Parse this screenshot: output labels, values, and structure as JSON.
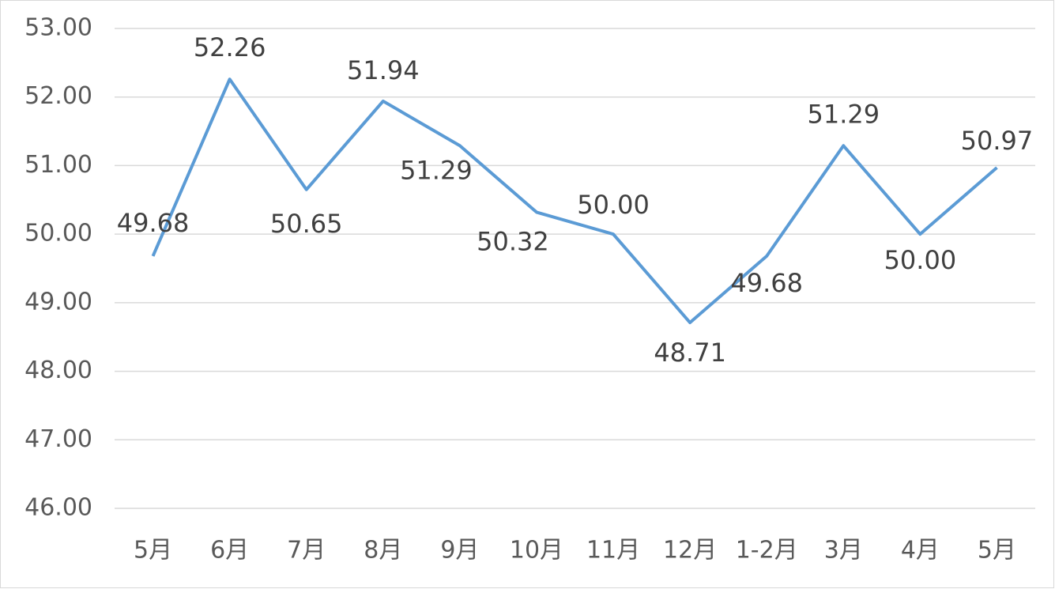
{
  "chart_data": {
    "type": "line",
    "categories": [
      "5月",
      "6月",
      "7月",
      "8月",
      "9月",
      "10月",
      "11月",
      "12月",
      "1-2月",
      "3月",
      "4月",
      "5月"
    ],
    "series": [
      {
        "color": "#5b9bd5",
        "values": [
          49.68,
          52.26,
          50.65,
          51.94,
          51.29,
          50.32,
          50.0,
          48.71,
          49.68,
          51.29,
          50.0,
          50.97
        ],
        "value_labels": [
          "49.68",
          "52.26",
          "50.65",
          "51.94",
          "51.29",
          "50.32",
          "50.00",
          "48.71",
          "49.68",
          "51.29",
          "50.00",
          "50.97"
        ]
      }
    ],
    "ylim": [
      46,
      53
    ],
    "yticks": [
      {
        "value": 46,
        "label": "46.00"
      },
      {
        "value": 47,
        "label": "47.00"
      },
      {
        "value": 48,
        "label": "48.00"
      },
      {
        "value": 49,
        "label": "49.00"
      },
      {
        "value": 50,
        "label": "50.00"
      },
      {
        "value": 51,
        "label": "51.00"
      },
      {
        "value": 52,
        "label": "52.00"
      },
      {
        "value": 53,
        "label": "53.00"
      }
    ],
    "grid": true
  }
}
